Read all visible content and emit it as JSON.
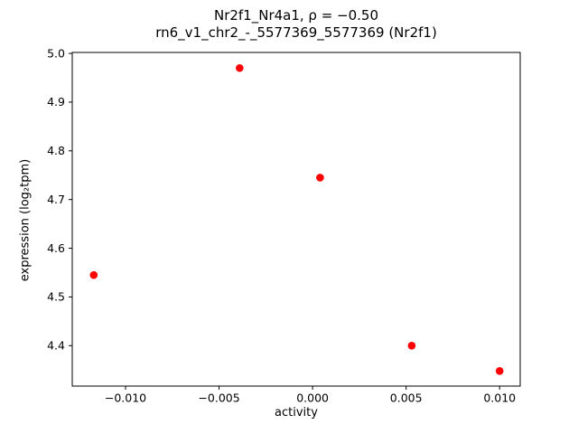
{
  "figure": {
    "title_line1": "Nr2f1_Nr4a1, ρ = −0.50",
    "title_line2": "rn6_v1_chr2_-_5577369_5577369 (Nr2f1)"
  },
  "chart_data": {
    "type": "scatter",
    "title": "Nr2f1_Nr4a1, ρ = −0.50\nrn6_v1_chr2_-_5577369_5577369 (Nr2f1)",
    "xlabel": "activity",
    "ylabel": "expression (log₂tpm)",
    "marker_color": "#ff0000",
    "marker_radius_px": 4.3,
    "xlim": [
      -0.01285,
      0.0111
    ],
    "ylim": [
      4.317,
      5.002
    ],
    "grid": false,
    "legend": null,
    "points": [
      {
        "x": -0.0117,
        "y": 4.545
      },
      {
        "x": -0.0039,
        "y": 4.97
      },
      {
        "x": 0.0004,
        "y": 4.745
      },
      {
        "x": 0.0053,
        "y": 4.4
      },
      {
        "x": 0.01,
        "y": 4.348
      }
    ],
    "xticks": [
      {
        "value": -0.01,
        "label": "−0.010"
      },
      {
        "value": -0.005,
        "label": "−0.005"
      },
      {
        "value": 0.0,
        "label": "0.000"
      },
      {
        "value": 0.005,
        "label": "0.005"
      },
      {
        "value": 0.01,
        "label": "0.010"
      }
    ],
    "yticks": [
      {
        "value": 4.4,
        "label": "4.4"
      },
      {
        "value": 4.5,
        "label": "4.5"
      },
      {
        "value": 4.6,
        "label": "4.6"
      },
      {
        "value": 4.7,
        "label": "4.7"
      },
      {
        "value": 4.8,
        "label": "4.8"
      },
      {
        "value": 4.9,
        "label": "4.9"
      },
      {
        "value": 5.0,
        "label": "5.0"
      }
    ]
  }
}
